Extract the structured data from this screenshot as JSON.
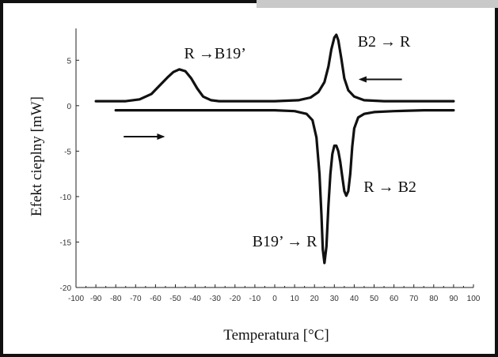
{
  "chart_data": {
    "type": "line",
    "xlabel": "Temperatura [°C]",
    "ylabel": "Efekt cieplny [mW]",
    "xlim": [
      -100,
      100
    ],
    "ylim": [
      -20,
      8.5
    ],
    "xticks": [
      -100,
      -90,
      -80,
      -70,
      -60,
      -50,
      -40,
      -30,
      -20,
      -10,
      0,
      10,
      20,
      30,
      40,
      50,
      60,
      70,
      80,
      90,
      100
    ],
    "yticks": [
      -20,
      -15,
      -10,
      -5,
      0,
      5
    ],
    "series": [
      {
        "values_x": [
          -90,
          -75,
          -68,
          -62,
          -58,
          -54,
          -51,
          -48,
          -45,
          -42,
          -39,
          -36,
          -32,
          -28,
          -20,
          0,
          12,
          18,
          22,
          25,
          27,
          28.5,
          30,
          31,
          32,
          33.5,
          35,
          37,
          40,
          45,
          55,
          70,
          90
        ],
        "values_y": [
          0.5,
          0.5,
          0.7,
          1.3,
          2.2,
          3.1,
          3.7,
          4.0,
          3.8,
          3.0,
          1.9,
          1.0,
          0.6,
          0.5,
          0.5,
          0.5,
          0.6,
          0.9,
          1.5,
          2.6,
          4.3,
          6.2,
          7.5,
          7.8,
          7.2,
          5.2,
          3.0,
          1.7,
          1.0,
          0.6,
          0.5,
          0.5,
          0.5
        ]
      },
      {
        "values_x": [
          -80,
          -40,
          0,
          10,
          16,
          19,
          21,
          22.5,
          23.5,
          24.2,
          25,
          26,
          27,
          28,
          29,
          30,
          31,
          32,
          33,
          34,
          35,
          36,
          37,
          38,
          39,
          40,
          42,
          45,
          50,
          60,
          75,
          90
        ],
        "values_y": [
          -0.5,
          -0.5,
          -0.5,
          -0.6,
          -0.9,
          -1.6,
          -3.5,
          -7.5,
          -12.0,
          -15.8,
          -17.3,
          -15.5,
          -11.0,
          -7.5,
          -5.3,
          -4.4,
          -4.4,
          -5.0,
          -6.2,
          -7.8,
          -9.4,
          -9.9,
          -9.4,
          -7.5,
          -4.5,
          -2.5,
          -1.3,
          -0.9,
          -0.7,
          -0.6,
          -0.5,
          -0.5
        ]
      }
    ],
    "annotations": [
      {
        "text": "R →B19’",
        "x": -30,
        "y": 5.2
      },
      {
        "text": "B2 → R",
        "x": 55,
        "y": 6.5
      },
      {
        "text": "R → B2",
        "x": 58,
        "y": -9.5
      },
      {
        "text": "B19’ → R",
        "x": 5,
        "y": -15.5
      }
    ],
    "arrows": [
      {
        "direction": "left",
        "x_from": 64,
        "x_to": 43,
        "y": 2.9
      },
      {
        "direction": "right",
        "x_from": -76,
        "x_to": -56,
        "y": -3.4
      }
    ]
  }
}
